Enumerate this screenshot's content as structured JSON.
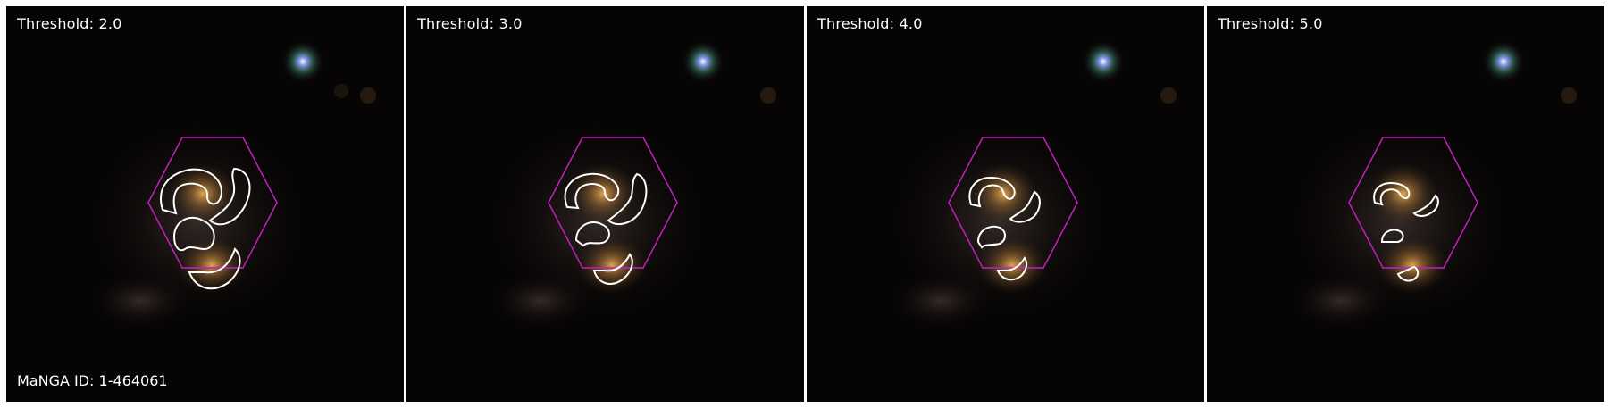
{
  "panels": [
    {
      "title": "Threshold: 2.0"
    },
    {
      "title": "Threshold: 3.0"
    },
    {
      "title": "Threshold: 4.0"
    },
    {
      "title": "Threshold: 5.0"
    }
  ],
  "id_label": "MaNGA ID: 1-464061",
  "colors": {
    "contour": "#ffffff",
    "hexagon": "#c21fc2",
    "background": "#060404",
    "galaxy_core": "#d9a04a",
    "star": "#9fb0ff"
  }
}
